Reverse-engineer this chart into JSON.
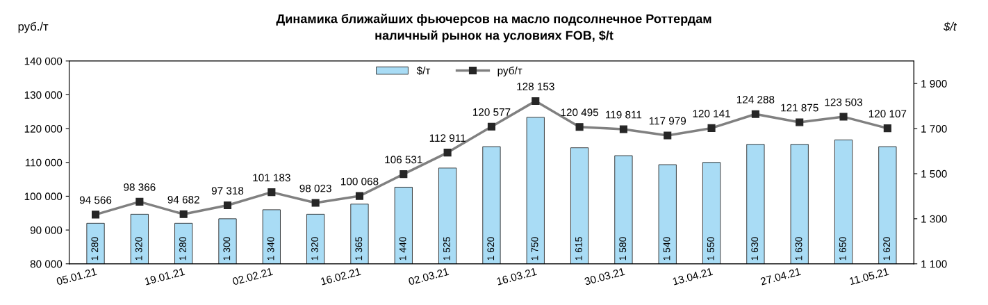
{
  "chart_data": {
    "type": "bar",
    "title": "Динамика ближайших фьючерсов на масло подсолнечное Роттердам\nналичный рынок на условиях FOB, $/t",
    "ylabel": "руб./т",
    "y2label": "$/t",
    "categories": [
      "05.01.21",
      null,
      "19.01.21",
      null,
      "02.02.21",
      null,
      "16.02.21",
      null,
      "02.03.21",
      null,
      "16.03.21",
      null,
      "30.03.21",
      null,
      "13.04.21",
      null,
      "27.04.21",
      null,
      "11.05.21"
    ],
    "series": [
      {
        "name": "$/т",
        "axis": "y2",
        "color": "#a9dcf5",
        "values": [
          1280,
          1320,
          1280,
          1300,
          1340,
          1320,
          1365,
          1440,
          1525,
          1620,
          1750,
          1615,
          1580,
          1540,
          1550,
          1630,
          1630,
          1650,
          1620
        ],
        "value_labels": [
          "1 280",
          "1 320",
          "1 280",
          "1 300",
          "1 340",
          "1 320",
          "1 365",
          "1 440",
          "1 525",
          "1 620",
          "1 750",
          "1 615",
          "1 580",
          "1 540",
          "1 550",
          "1 630",
          "1 630",
          "1 650",
          "1 620"
        ]
      },
      {
        "name": "руб/т",
        "type": "line",
        "color": "#808080",
        "marker": "square",
        "values": [
          94566,
          98366,
          94682,
          97318,
          101183,
          98023,
          100068,
          106531,
          112911,
          120577,
          128153,
          120495,
          119811,
          117979,
          120141,
          124288,
          121875,
          123503,
          120107
        ],
        "value_labels": [
          "94 566",
          "98 366",
          "94 682",
          "97 318",
          "101 183",
          "98 023",
          "100 068",
          "106 531",
          "112 911",
          "120 577",
          "128 153",
          "120 495",
          "119 811",
          "117 979",
          "120 141",
          "124 288",
          "121 875",
          "123 503",
          "120 107"
        ]
      }
    ],
    "ylim": [
      80000,
      140000
    ],
    "yticks": [
      {
        "value": 80000,
        "label": "80 000"
      },
      {
        "value": 90000,
        "label": "90 000"
      },
      {
        "value": 100000,
        "label": "100 000"
      },
      {
        "value": 110000,
        "label": "110 000"
      },
      {
        "value": 120000,
        "label": "120 000"
      },
      {
        "value": 130000,
        "label": "130 000"
      },
      {
        "value": 140000,
        "label": "140 000"
      }
    ],
    "y2lim": [
      1100,
      2000
    ],
    "y2ticks": [
      {
        "value": 1100,
        "label": "1 100"
      },
      {
        "value": 1300,
        "label": "1 300"
      },
      {
        "value": 1500,
        "label": "1 500"
      },
      {
        "value": 1700,
        "label": "1 700"
      },
      {
        "value": 1900,
        "label": "1 900"
      }
    ],
    "legend": "top",
    "grid": false
  }
}
